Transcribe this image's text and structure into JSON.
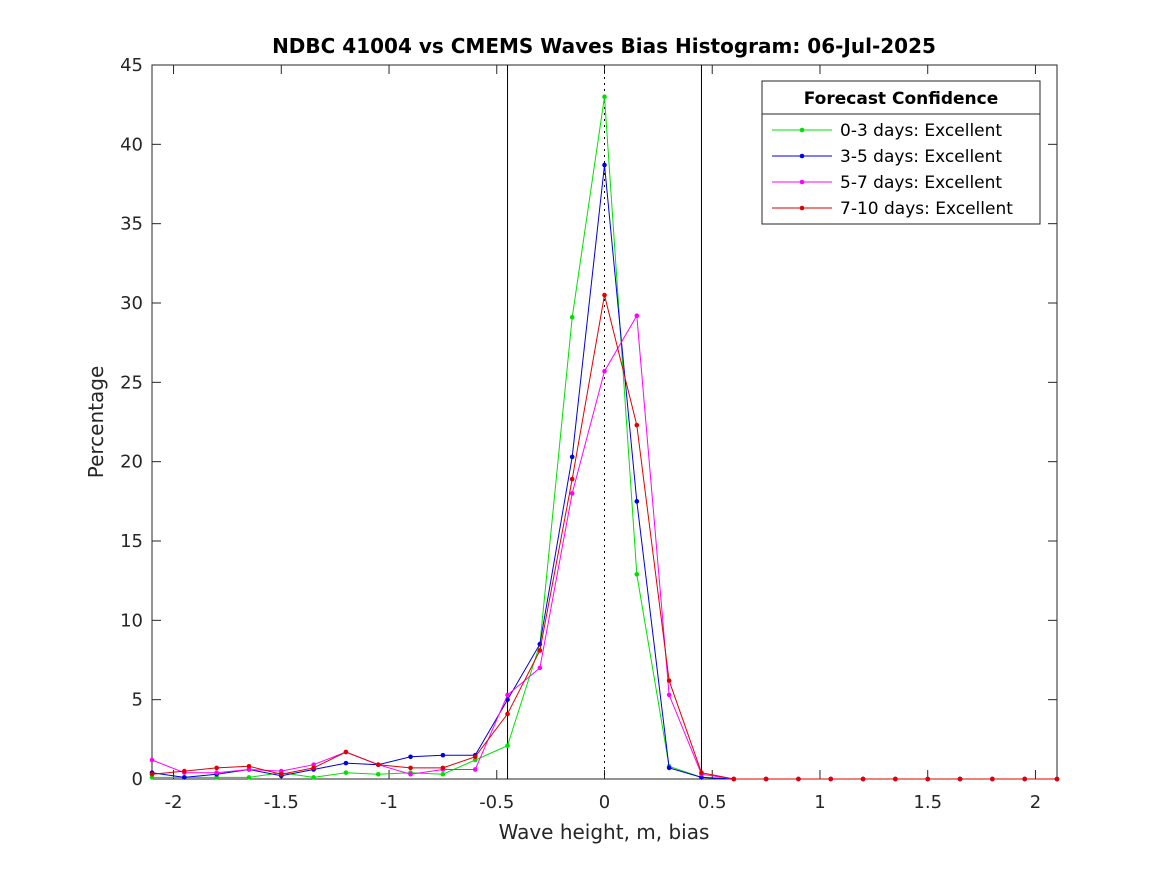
{
  "chart_data": {
    "type": "line",
    "title": "NDBC 41004 vs CMEMS Waves Bias Histogram: 06-Jul-2025",
    "xlabel": "Wave height, m, bias",
    "ylabel": "Percentage",
    "xlim": [
      -2.1,
      2.1
    ],
    "ylim": [
      0,
      45
    ],
    "xticks": [
      -2,
      -1.5,
      -1,
      -0.5,
      0,
      0.5,
      1,
      1.5,
      2
    ],
    "xtick_labels": [
      "-2",
      "-1.5",
      "-1",
      "-0.5",
      "0",
      "0.5",
      "1",
      "1.5",
      "2"
    ],
    "yticks": [
      0,
      5,
      10,
      15,
      20,
      25,
      30,
      35,
      40,
      45
    ],
    "ytick_labels": [
      "0",
      "5",
      "10",
      "15",
      "20",
      "25",
      "30",
      "35",
      "40",
      "45"
    ],
    "grid": false,
    "vertical_lines": [
      {
        "x": -0.45,
        "style": "solid",
        "color": "#000000"
      },
      {
        "x": 0.45,
        "style": "solid",
        "color": "#000000"
      },
      {
        "x": 0,
        "style": "dotted",
        "color": "#000000"
      }
    ],
    "x": [
      -2.1,
      -1.95,
      -1.8,
      -1.65,
      -1.5,
      -1.35,
      -1.2,
      -1.05,
      -0.9,
      -0.75,
      -0.6,
      -0.45,
      -0.3,
      -0.15,
      0,
      0.15,
      0.3,
      0.45,
      0.6,
      0.75,
      0.9,
      1.05,
      1.2,
      1.35,
      1.5,
      1.65,
      1.8,
      1.95,
      2.1
    ],
    "legend": {
      "title": "Forecast Confidence",
      "position": "top-right"
    },
    "series": [
      {
        "name": "0-3 days: Excellent",
        "color": "#00e000",
        "values": [
          0.1,
          0.1,
          0.1,
          0.1,
          0.4,
          0.1,
          0.4,
          0.3,
          0.4,
          0.3,
          1.2,
          2.1,
          8.5,
          29.1,
          43.0,
          12.9,
          0.8,
          0.1,
          0,
          0,
          0,
          0,
          0,
          0,
          0,
          0,
          0,
          0,
          0
        ]
      },
      {
        "name": "3-5 days: Excellent",
        "color": "#0000e0",
        "values": [
          0.4,
          0.1,
          0.3,
          0.6,
          0.2,
          0.6,
          1.0,
          0.9,
          1.4,
          1.5,
          1.5,
          5.0,
          8.5,
          20.3,
          38.7,
          17.5,
          0.7,
          0.1,
          0,
          0,
          0,
          0,
          0,
          0,
          0,
          0,
          0,
          0,
          0
        ]
      },
      {
        "name": "5-7 days: Excellent",
        "color": "#ff00ff",
        "values": [
          1.2,
          0.4,
          0.4,
          0.6,
          0.5,
          0.9,
          1.7,
          0.9,
          0.3,
          0.6,
          0.6,
          5.3,
          7.0,
          18.0,
          25.7,
          29.2,
          5.3,
          0.3,
          0,
          0,
          0,
          0,
          0,
          0,
          0,
          0,
          0,
          0,
          0
        ]
      },
      {
        "name": "7-10 days: Excellent",
        "color": "#e00000",
        "values": [
          0.3,
          0.5,
          0.7,
          0.8,
          0.3,
          0.7,
          1.7,
          0.9,
          0.7,
          0.7,
          1.4,
          4.1,
          8.1,
          18.9,
          30.5,
          22.3,
          6.2,
          0.4,
          0,
          0,
          0,
          0,
          0,
          0,
          0,
          0,
          0,
          0,
          0
        ]
      }
    ]
  }
}
